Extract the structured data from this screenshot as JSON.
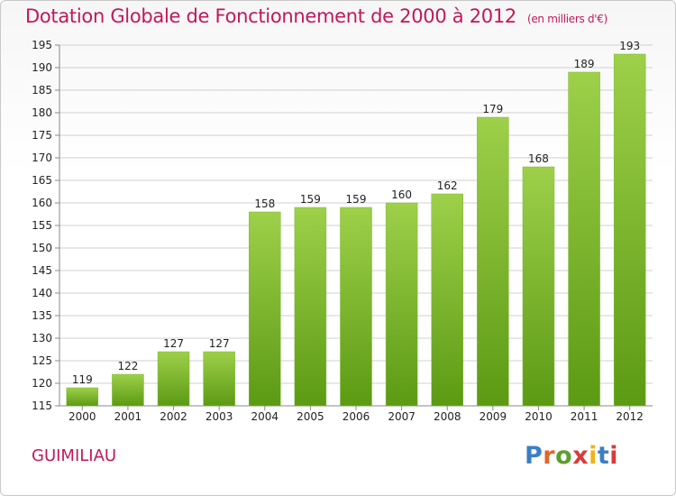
{
  "header": {
    "title": "Dotation Globale de Fonctionnement de 2000 à 2012",
    "subtitle": "(en milliers d'€)"
  },
  "footer": {
    "commune": "GUIMILIAU",
    "logo": "Proxiti"
  },
  "colors": {
    "title": "#c2185b",
    "bar_top": "#9ed04a",
    "bar_bottom": "#5c9a14",
    "grid": "#d0d0d0"
  },
  "chart_data": {
    "type": "bar",
    "title": "Dotation Globale de Fonctionnement de 2000 à 2012",
    "subtitle": "(en milliers d'€)",
    "categories": [
      "2000",
      "2001",
      "2002",
      "2003",
      "2004",
      "2005",
      "2006",
      "2007",
      "2008",
      "2009",
      "2010",
      "2011",
      "2012"
    ],
    "values": [
      119,
      122,
      127,
      127,
      158,
      159,
      159,
      160,
      162,
      179,
      168,
      189,
      193
    ],
    "ylim": [
      115,
      195
    ],
    "yticks": [
      115,
      120,
      125,
      130,
      135,
      140,
      145,
      150,
      155,
      160,
      165,
      170,
      175,
      180,
      185,
      190,
      195
    ],
    "grid": true,
    "data_labels": true
  }
}
